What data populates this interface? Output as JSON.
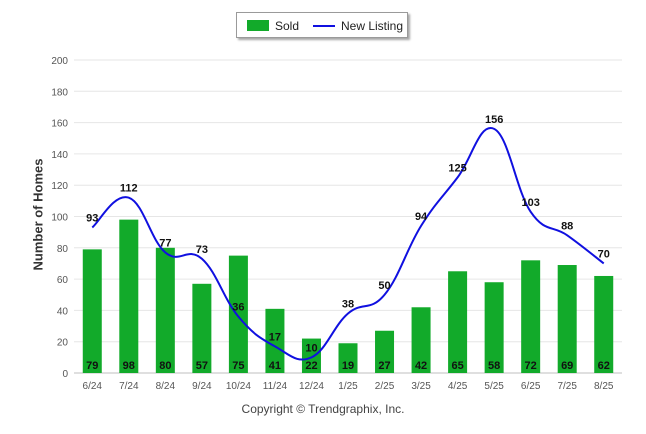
{
  "chart_data": {
    "type": "bar",
    "categories": [
      "6/24",
      "7/24",
      "8/24",
      "9/24",
      "10/24",
      "11/24",
      "12/24",
      "1/25",
      "2/25",
      "3/25",
      "4/25",
      "5/25",
      "6/25",
      "7/25",
      "8/25"
    ],
    "series": [
      {
        "name": "Sold",
        "kind": "bar",
        "color": "#12aa2a",
        "values": [
          79,
          98,
          80,
          57,
          75,
          41,
          22,
          19,
          27,
          42,
          65,
          58,
          72,
          69,
          62
        ]
      },
      {
        "name": "New Listing",
        "kind": "line",
        "color": "#1010e0",
        "values": [
          93,
          112,
          77,
          73,
          36,
          17,
          10,
          38,
          50,
          94,
          125,
          156,
          103,
          88,
          70
        ]
      }
    ],
    "ylabel": "Number of Homes",
    "ylim": [
      0,
      200
    ],
    "yticks": [
      0,
      20,
      40,
      60,
      80,
      100,
      120,
      140,
      160,
      180,
      200
    ],
    "grid": true,
    "legend_position": "top-center"
  },
  "legend": {
    "sold_label": "Sold",
    "listing_label": "New Listing"
  },
  "footer": {
    "copyright": "Copyright © Trendgraphix, Inc."
  }
}
